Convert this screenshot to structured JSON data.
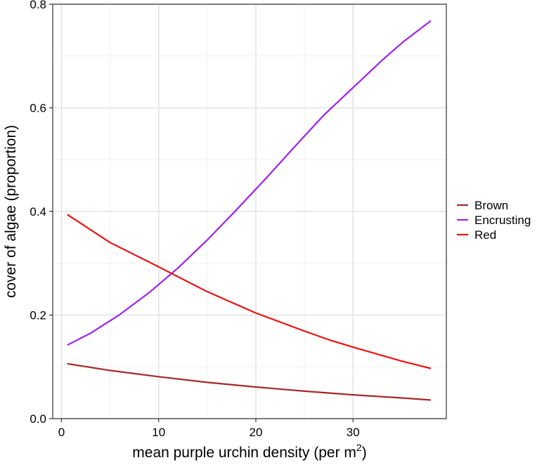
{
  "chart_data": {
    "type": "line",
    "xlabel": "mean purple urchin density (per m",
    "xlabel_superscript": "2",
    "xlabel_suffix": ")",
    "ylabel": "cover of algae (proportion)",
    "xlim": [
      -0.9,
      39.6
    ],
    "ylim": [
      0,
      0.8
    ],
    "x_ticks": [
      0,
      10,
      20,
      30
    ],
    "x_tick_labels": [
      "0",
      "10",
      "20",
      "30"
    ],
    "y_ticks": [
      0,
      0.2,
      0.4,
      0.6,
      0.8
    ],
    "y_tick_labels": [
      "0.0",
      "0.2",
      "0.4",
      "0.6",
      "0.8"
    ],
    "grid": true,
    "legend_position": "right",
    "series": [
      {
        "name": "Brown",
        "color": "#a52a2a",
        "x": [
          0.6,
          5,
          10,
          15,
          20,
          25,
          30,
          35,
          38
        ],
        "values": [
          0.106,
          0.093,
          0.081,
          0.07,
          0.061,
          0.053,
          0.046,
          0.04,
          0.036
        ]
      },
      {
        "name": "Encrusting",
        "color": "#a020f0",
        "x": [
          0.6,
          3,
          6,
          9,
          12,
          15,
          18,
          21,
          24,
          27,
          30,
          33,
          35.2,
          38
        ],
        "values": [
          0.142,
          0.165,
          0.201,
          0.243,
          0.291,
          0.345,
          0.403,
          0.463,
          0.525,
          0.586,
          0.639,
          0.692,
          0.728,
          0.768
        ]
      },
      {
        "name": "Red",
        "color": "#ee1111",
        "x": [
          0.6,
          5,
          10,
          15,
          20,
          25,
          27.7,
          30,
          35,
          38
        ],
        "values": [
          0.394,
          0.34,
          0.293,
          0.245,
          0.204,
          0.169,
          0.151,
          0.138,
          0.111,
          0.097
        ]
      }
    ]
  }
}
